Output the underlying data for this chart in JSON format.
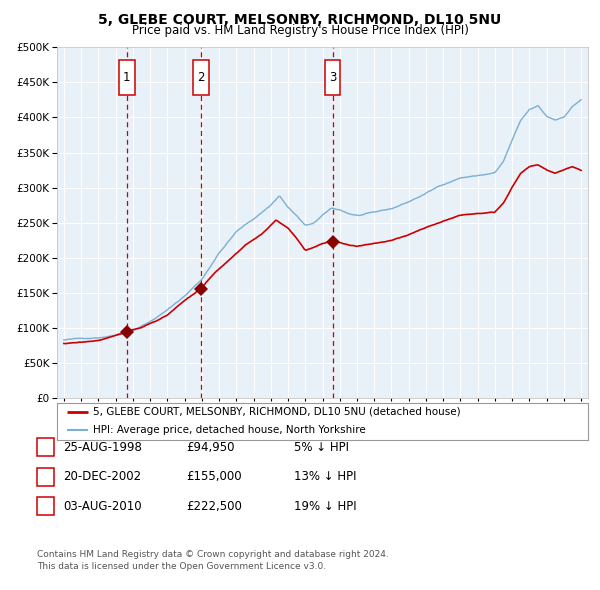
{
  "title1": "5, GLEBE COURT, MELSONBY, RICHMOND, DL10 5NU",
  "title2": "Price paid vs. HM Land Registry's House Price Index (HPI)",
  "legend1": "5, GLEBE COURT, MELSONBY, RICHMOND, DL10 5NU (detached house)",
  "legend2": "HPI: Average price, detached house, North Yorkshire",
  "footer1": "Contains HM Land Registry data © Crown copyright and database right 2024.",
  "footer2": "This data is licensed under the Open Government Licence v3.0.",
  "sale_prices": [
    94950,
    155000,
    222500
  ],
  "sale_labels": [
    "1",
    "2",
    "3"
  ],
  "sale_decimal": [
    1998.646,
    2002.962,
    2010.587
  ],
  "sale_info": [
    [
      "1",
      "25-AUG-1998",
      "£94,950",
      "5% ↓ HPI"
    ],
    [
      "2",
      "20-DEC-2002",
      "£155,000",
      "13% ↓ HPI"
    ],
    [
      "3",
      "03-AUG-2010",
      "£222,500",
      "19% ↓ HPI"
    ]
  ],
  "hpi_color": "#7bafd4",
  "price_color": "#cc0000",
  "sale_marker_color": "#880000",
  "vline_color": "#cc0000",
  "plot_bg": "#e8f0f8",
  "grid_color": "#ffffff",
  "ylim": [
    0,
    500000
  ],
  "yticks": [
    0,
    50000,
    100000,
    150000,
    200000,
    250000,
    300000,
    350000,
    400000,
    450000,
    500000
  ],
  "xlim_start": 1994.6,
  "xlim_end": 2025.4,
  "hpi_checkpoints_x": [
    1995.0,
    1996.0,
    1997.0,
    1998.0,
    1999.0,
    2000.0,
    2001.0,
    2002.0,
    2003.0,
    2004.0,
    2005.0,
    2006.0,
    2007.0,
    2007.5,
    2008.0,
    2008.5,
    2009.0,
    2009.5,
    2010.0,
    2010.5,
    2011.0,
    2011.5,
    2012.0,
    2013.0,
    2014.0,
    2015.0,
    2016.0,
    2017.0,
    2018.0,
    2019.0,
    2020.0,
    2020.5,
    2021.0,
    2021.5,
    2022.0,
    2022.5,
    2023.0,
    2023.5,
    2024.0,
    2024.5,
    2025.0
  ],
  "hpi_checkpoints_y": [
    83000,
    84500,
    87000,
    91000,
    99000,
    112000,
    128000,
    148000,
    172000,
    210000,
    240000,
    258000,
    278000,
    292000,
    275000,
    263000,
    248000,
    252000,
    262000,
    272000,
    270000,
    265000,
    262000,
    265000,
    270000,
    280000,
    292000,
    305000,
    315000,
    318000,
    322000,
    338000,
    368000,
    395000,
    410000,
    415000,
    400000,
    395000,
    400000,
    415000,
    425000
  ],
  "price_checkpoints_x": [
    1995.0,
    1996.0,
    1997.0,
    1998.0,
    1998.646,
    1999.5,
    2001.0,
    2002.0,
    2002.962,
    2003.5,
    2004.5,
    2005.5,
    2006.5,
    2007.3,
    2008.0,
    2008.5,
    2009.0,
    2009.5,
    2010.0,
    2010.587,
    2011.0,
    2011.5,
    2012.0,
    2013.0,
    2014.0,
    2015.0,
    2016.0,
    2017.0,
    2018.0,
    2019.0,
    2020.0,
    2020.5,
    2021.0,
    2021.5,
    2022.0,
    2022.5,
    2023.0,
    2023.5,
    2024.0,
    2024.5,
    2025.0
  ],
  "price_checkpoints_y": [
    78000,
    79000,
    82000,
    89000,
    94950,
    100000,
    118000,
    138000,
    155000,
    170000,
    193000,
    215000,
    232000,
    252000,
    240000,
    225000,
    208000,
    212000,
    218000,
    222500,
    220000,
    216000,
    214000,
    218000,
    222000,
    230000,
    240000,
    250000,
    258000,
    262000,
    265000,
    278000,
    300000,
    320000,
    330000,
    332000,
    325000,
    320000,
    325000,
    330000,
    325000
  ]
}
